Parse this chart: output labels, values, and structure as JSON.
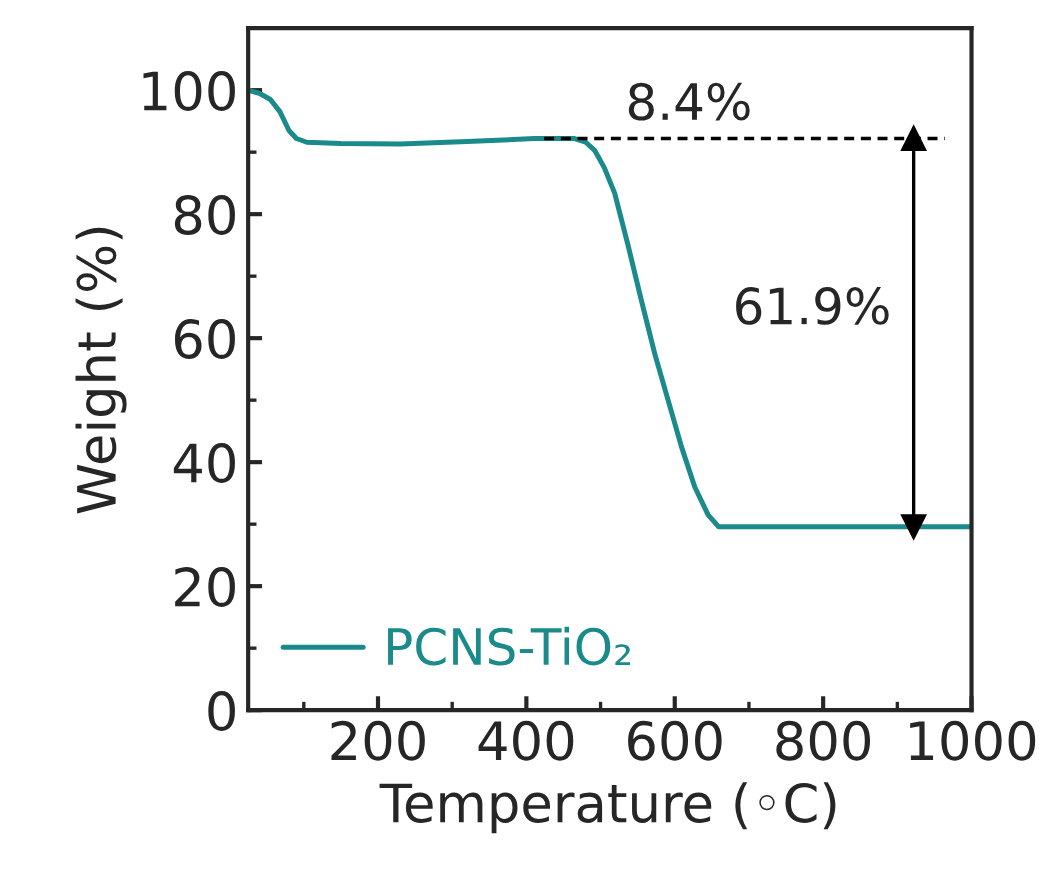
{
  "chart_data": {
    "type": "line",
    "xlabel": "Temperature (◦C)",
    "ylabel": "Weight (%)",
    "xlim": [
      25,
      1000
    ],
    "ylim": [
      0,
      110
    ],
    "xticks": [
      {
        "value": 100,
        "label": null
      },
      200,
      {
        "value": 300,
        "label": null
      },
      400,
      {
        "value": 500,
        "label": null
      },
      600,
      {
        "value": 700,
        "label": null
      },
      800,
      {
        "value": 900,
        "label": null
      },
      1000
    ],
    "yticks": [
      0,
      {
        "value": 10,
        "label": null
      },
      20,
      {
        "value": 30,
        "label": null
      },
      40,
      {
        "value": 50,
        "label": null
      },
      60,
      {
        "value": 70,
        "label": null
      },
      80,
      {
        "value": 90,
        "label": null
      },
      100
    ],
    "grid": false,
    "legend": "bottom left",
    "line_style": "solid",
    "marker": "none",
    "series": [
      {
        "name": "PCNS-TiO₂",
        "color": "#1a8a8a",
        "x": [
          25,
          40,
          55,
          68,
          80,
          90,
          104,
          150,
          230,
          320,
          411,
          465,
          480,
          492,
          505,
          519,
          537,
          555,
          573,
          591,
          609,
          627,
          645,
          659,
          700,
          800,
          900,
          1000
        ],
        "values": [
          100,
          99.5,
          98.5,
          96.5,
          93.5,
          92.2,
          91.6,
          91.4,
          91.3,
          91.7,
          92.2,
          92.2,
          91.6,
          90.3,
          87.5,
          83.4,
          75,
          66.1,
          57.5,
          50,
          42.5,
          36,
          31.5,
          29.6,
          29.6,
          29.6,
          29.6,
          29.6
        ]
      },
      {
        "color": "#000000",
        "x": [
          424,
          964
        ],
        "values": [
          92.2,
          92.2
        ],
        "line_style": "dashed"
      },
      {
        "color": "#000000",
        "x": [
          922,
          922
        ],
        "values": [
          92.2,
          29.6
        ],
        "marker": "triangle"
      }
    ],
    "annotations": [
      "8.4%",
      "61.9%"
    ]
  }
}
